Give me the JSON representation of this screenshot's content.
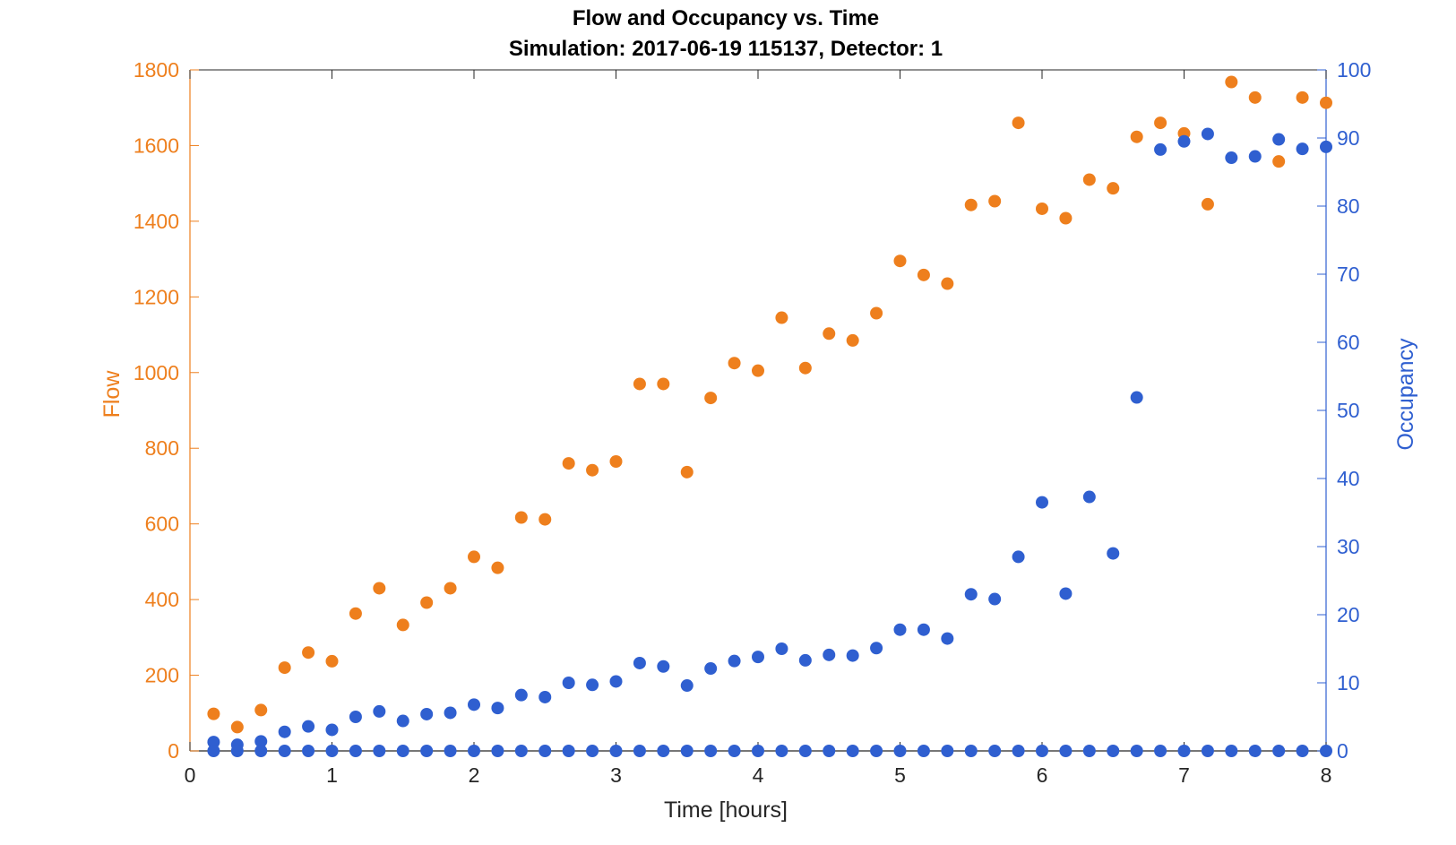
{
  "chart_data": {
    "type": "scatter",
    "title": "Flow and Occupancy vs. Time",
    "subtitle": "Simulation:  2017-06-19 115137,  Detector:  1",
    "xlabel": "Time [hours]",
    "ylabel_left": "Flow",
    "ylabel_right": "Occupancy",
    "xlim": [
      0,
      8
    ],
    "ylim_left": [
      0,
      1800
    ],
    "ylim_right": [
      0,
      100
    ],
    "x_ticks": [
      "0",
      "1",
      "2",
      "3",
      "4",
      "5",
      "6",
      "7",
      "8"
    ],
    "y_ticks_left": [
      "0",
      "200",
      "400",
      "600",
      "800",
      "1000",
      "1200",
      "1400",
      "1600",
      "1800"
    ],
    "y_ticks_right": [
      "0",
      "10",
      "20",
      "30",
      "40",
      "50",
      "60",
      "70",
      "80",
      "90",
      "100"
    ],
    "grid": false,
    "x": [
      0.1667,
      0.3333,
      0.5,
      0.6667,
      0.8333,
      1.0,
      1.1667,
      1.3333,
      1.5,
      1.6667,
      1.8333,
      2.0,
      2.1667,
      2.3333,
      2.5,
      2.6667,
      2.8333,
      3.0,
      3.1667,
      3.3333,
      3.5,
      3.6667,
      3.8333,
      4.0,
      4.1667,
      4.3333,
      4.5,
      4.6667,
      4.8333,
      5.0,
      5.1667,
      5.3333,
      5.5,
      5.6667,
      5.8333,
      6.0,
      6.1667,
      6.3333,
      6.5,
      6.6667,
      6.8333,
      7.0,
      7.1667,
      7.3333,
      7.5,
      7.6667,
      7.8333,
      8.0
    ],
    "series": [
      {
        "name": "Flow",
        "axis": "left",
        "color": "#EE7F1D",
        "values": [
          98,
          63,
          108,
          220,
          260,
          237,
          363,
          430,
          333,
          392,
          430,
          513,
          484,
          617,
          612,
          760,
          742,
          765,
          970,
          970,
          737,
          933,
          1025,
          1005,
          1145,
          1012,
          1103,
          1085,
          1157,
          1295,
          1258,
          1235,
          1443,
          1453,
          1660,
          1433,
          1408,
          1510,
          1487,
          1623,
          1660,
          1632,
          1445,
          1768,
          1727,
          1558,
          1727,
          1713
        ]
      },
      {
        "name": "Occupancy",
        "axis": "right",
        "color": "#2F5FD0",
        "values": [
          1.3,
          0.9,
          1.4,
          2.8,
          3.6,
          3.1,
          5.0,
          5.8,
          4.4,
          5.4,
          5.6,
          6.8,
          6.3,
          8.2,
          7.9,
          10.0,
          9.7,
          10.2,
          12.9,
          12.4,
          9.6,
          12.1,
          13.2,
          13.8,
          15.0,
          13.3,
          14.1,
          14.0,
          15.1,
          17.8,
          17.8,
          16.5,
          23.0,
          22.3,
          28.5,
          36.5,
          23.1,
          37.3,
          29.0,
          51.9,
          88.3,
          89.5,
          90.6,
          87.1,
          87.3,
          89.8,
          88.4,
          88.7
        ]
      },
      {
        "name": "",
        "axis": "right",
        "color": "#2F5FD0",
        "values": [
          0,
          0,
          0,
          0,
          0,
          0,
          0,
          0,
          0,
          0,
          0,
          0,
          0,
          0,
          0,
          0,
          0,
          0,
          0,
          0,
          0,
          0,
          0,
          0,
          0,
          0,
          0,
          0,
          0,
          0,
          0,
          0,
          0,
          0,
          0,
          0,
          0,
          0,
          0,
          0,
          0,
          0,
          0,
          0,
          0,
          0,
          0,
          0
        ]
      }
    ]
  },
  "colors": {
    "left_axis": "#EE7F1D",
    "right_axis": "#2F5FD0",
    "bottom_axis": "#262626"
  }
}
